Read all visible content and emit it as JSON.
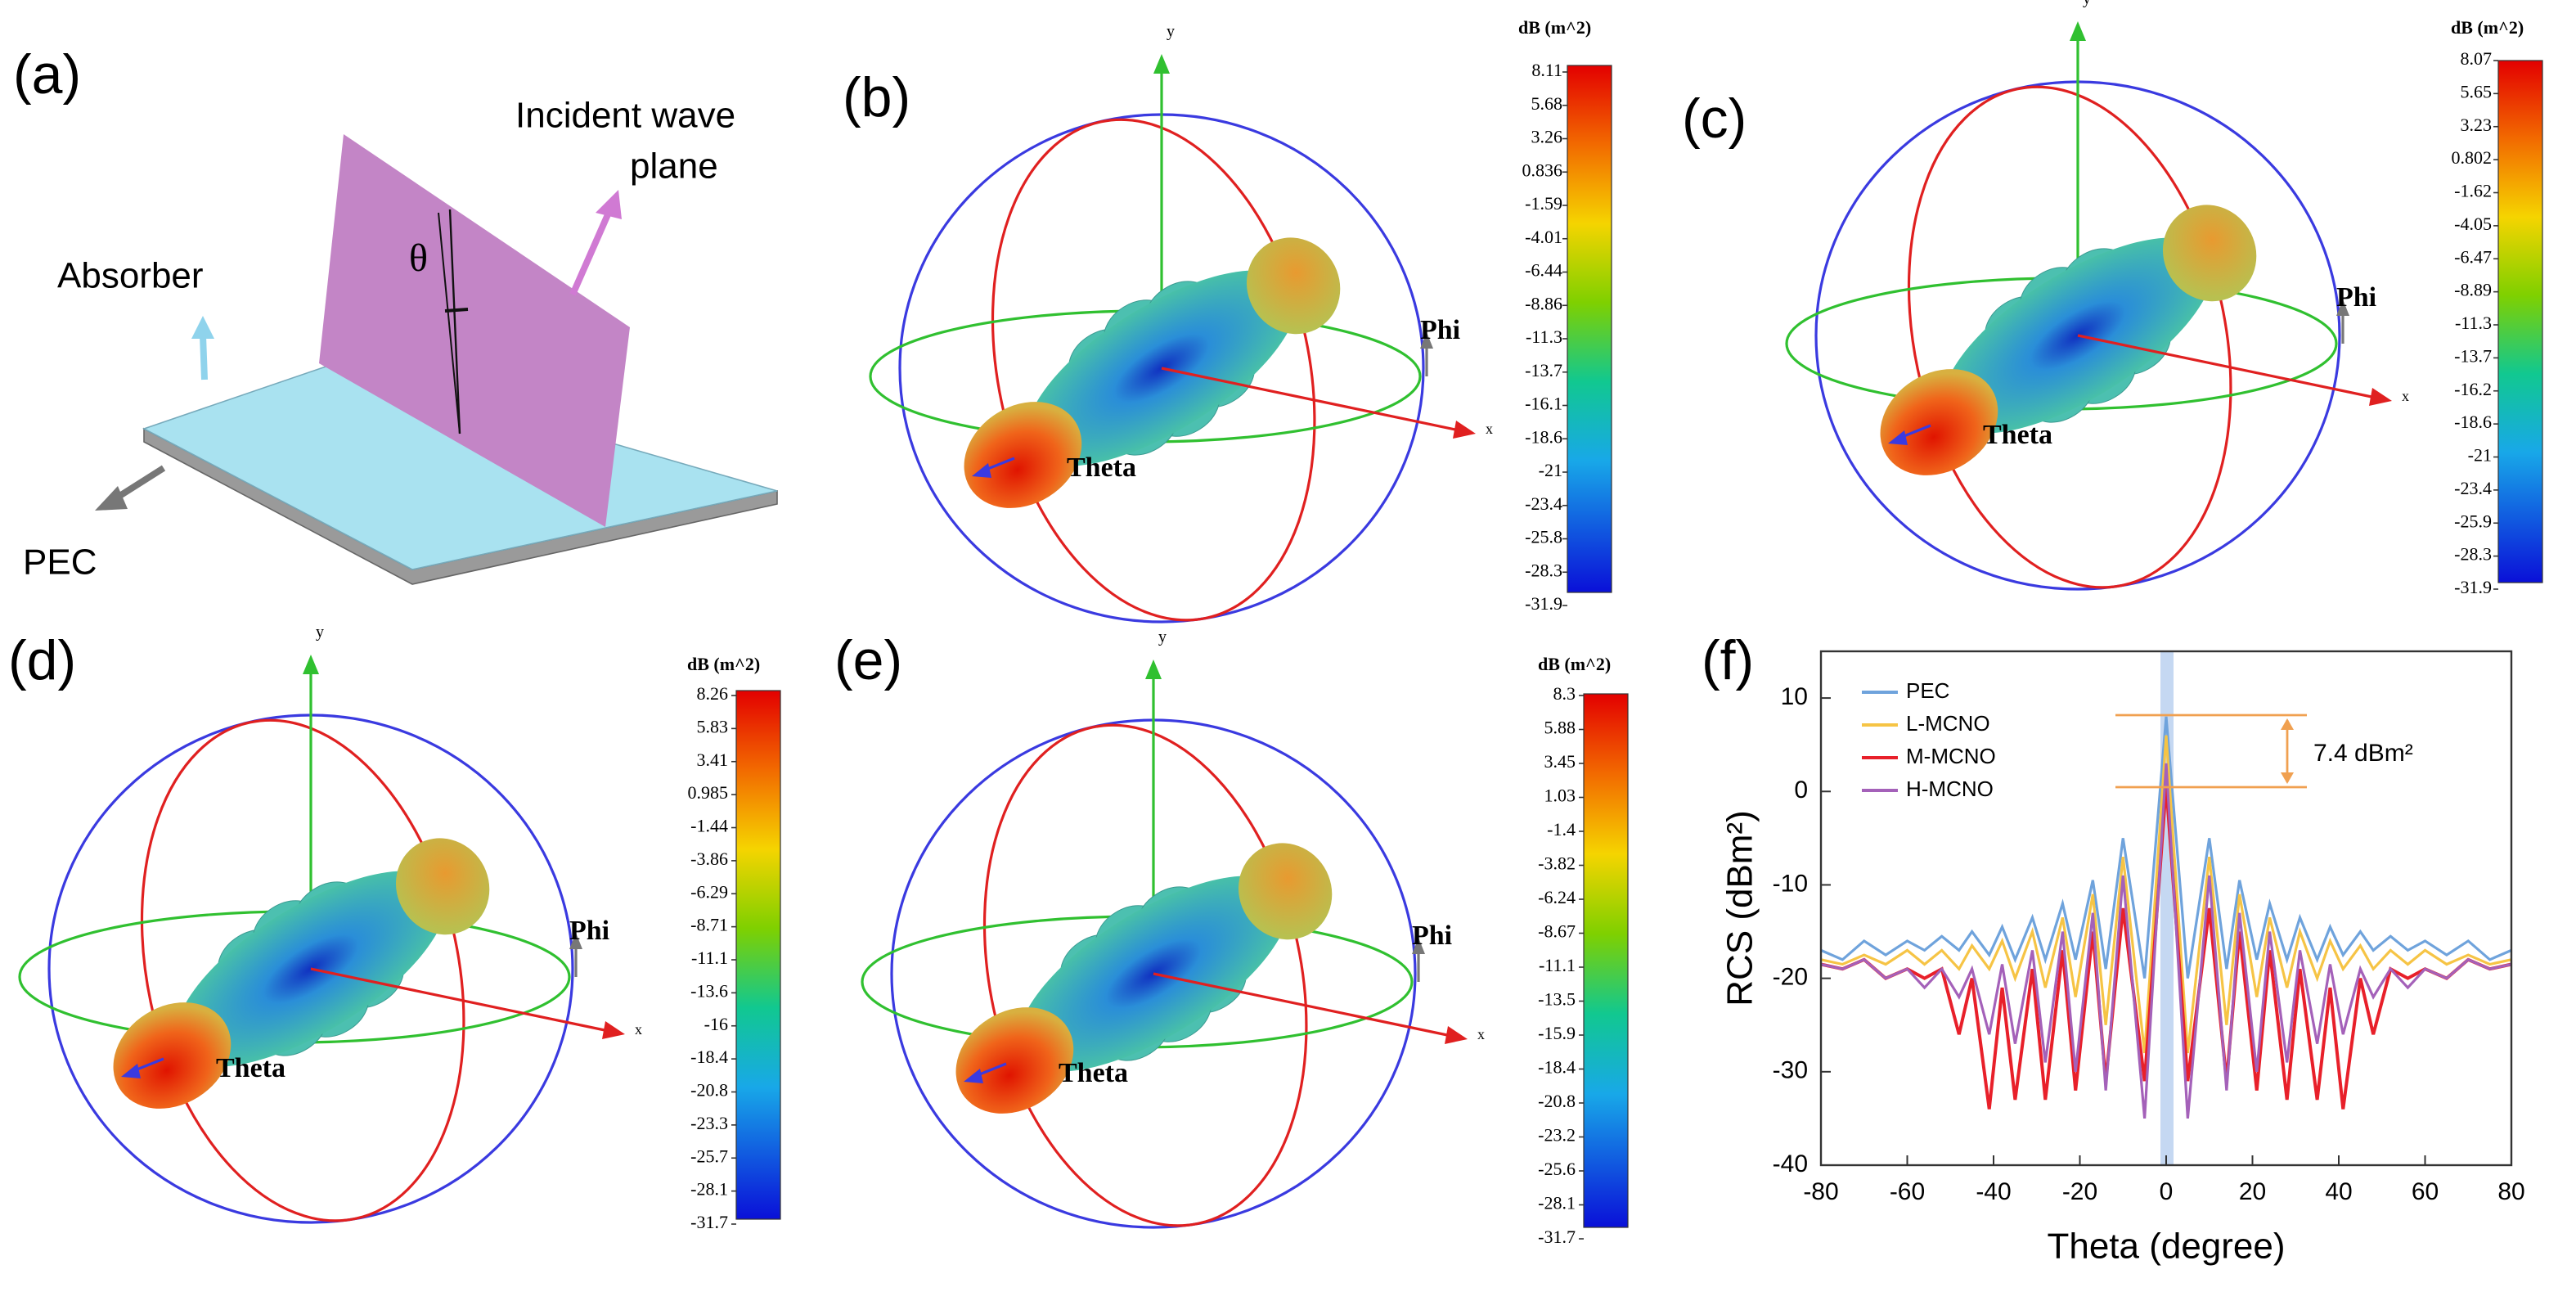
{
  "panels": {
    "a": {
      "label": "(a)",
      "incident": [
        "Incident wave",
        "plane"
      ],
      "absorber": "Absorber",
      "pec": "PEC",
      "theta": "θ"
    },
    "b": {
      "label": "(b)",
      "axis_y": "y",
      "axis_x": "x",
      "phi": "Phi",
      "theta": "Theta",
      "colorbar": {
        "title": "dB (m^2)",
        "ticks": [
          8.11,
          5.68,
          3.26,
          0.836,
          -1.59,
          -4.01,
          -6.44,
          -8.86,
          -11.3,
          -13.7,
          -16.1,
          -18.6,
          -21,
          -23.4,
          -25.8,
          -28.3,
          -31.9
        ]
      }
    },
    "c": {
      "label": "(c)",
      "axis_y": "y",
      "axis_x": "x",
      "phi": "Phi",
      "theta": "Theta",
      "colorbar": {
        "title": "dB (m^2)",
        "ticks": [
          8.07,
          5.65,
          3.23,
          0.802,
          -1.62,
          -4.05,
          -6.47,
          -8.89,
          -11.3,
          -13.7,
          -16.2,
          -18.6,
          -21,
          -23.4,
          -25.9,
          -28.3,
          -31.9
        ]
      }
    },
    "d": {
      "label": "(d)",
      "axis_y": "y",
      "axis_x": "x",
      "phi": "Phi",
      "theta": "Theta",
      "colorbar": {
        "title": "dB (m^2)",
        "ticks": [
          8.26,
          5.83,
          3.41,
          0.985,
          -1.44,
          -3.86,
          -6.29,
          -8.71,
          -11.1,
          -13.6,
          -16,
          -18.4,
          -20.8,
          -23.3,
          -25.7,
          -28.1,
          -31.7
        ]
      }
    },
    "e": {
      "label": "(e)",
      "axis_y": "y",
      "axis_x": "x",
      "phi": "Phi",
      "theta": "Theta",
      "colorbar": {
        "title": "dB (m^2)",
        "ticks": [
          8.3,
          5.88,
          3.45,
          1.03,
          -1.4,
          -3.82,
          -6.24,
          -8.67,
          -11.1,
          -13.5,
          -15.9,
          -18.4,
          -20.8,
          -23.2,
          -25.6,
          -28.1,
          -31.7
        ]
      }
    },
    "f": {
      "label": "(f)"
    }
  },
  "chart_data": {
    "type": "line",
    "x_label": "Theta (degree)",
    "y_label": "RCS (dBm²)",
    "annotation": "7.4 dBm²",
    "x": [
      -80,
      -75,
      -70,
      -65,
      -60,
      -56,
      -52,
      -48,
      -45,
      -41,
      -38,
      -35,
      -31,
      -28,
      -24,
      -21,
      -17,
      -14,
      -10,
      -5,
      0,
      5,
      10,
      14,
      17,
      21,
      24,
      28,
      31,
      35,
      38,
      41,
      45,
      48,
      52,
      56,
      60,
      65,
      70,
      75,
      80
    ],
    "series": [
      {
        "name": "PEC",
        "color": "#6fa3dc",
        "values": [
          -17,
          -18,
          -16,
          -17.5,
          -16,
          -17,
          -15.5,
          -17,
          -15,
          -17.5,
          -14.5,
          -18,
          -13.5,
          -18,
          -12,
          -18,
          -9.5,
          -19,
          -5,
          -20,
          8,
          -20,
          -5,
          -19,
          -9.5,
          -18,
          -12,
          -18,
          -13.5,
          -18,
          -14.5,
          -17.5,
          -15,
          -17,
          -15.5,
          -17,
          -16,
          -17.5,
          -16,
          -18,
          -17
        ]
      },
      {
        "name": "L-MCNO",
        "color": "#f6c445",
        "values": [
          -18,
          -18.5,
          -17.5,
          -18.5,
          -17,
          -18.5,
          -17,
          -19,
          -16.5,
          -19,
          -16,
          -20,
          -15,
          -21,
          -13.5,
          -22,
          -11,
          -25,
          -7,
          -28,
          6,
          -28,
          -7,
          -25,
          -11,
          -22,
          -13.5,
          -21,
          -15,
          -20,
          -16,
          -19,
          -16.5,
          -19,
          -17,
          -18.5,
          -17,
          -18.5,
          -17.5,
          -18.5,
          -18
        ]
      },
      {
        "name": "M-MCNO",
        "color": "#e8202a",
        "values": [
          -18.5,
          -19,
          -18,
          -20,
          -19,
          -20,
          -19,
          -26,
          -20,
          -34,
          -21,
          -33,
          -19,
          -33,
          -17,
          -32,
          -15,
          -31,
          -12.5,
          -31,
          0.7,
          -31,
          -12.5,
          -31,
          -15,
          -32,
          -17,
          -33,
          -19,
          -33,
          -21,
          -34,
          -20,
          -26,
          -19,
          -20,
          -19,
          -20,
          -18,
          -19,
          -18.5
        ]
      },
      {
        "name": "H-MCNO",
        "color": "#a461b9",
        "values": [
          -18.5,
          -19,
          -18,
          -20,
          -19,
          -21,
          -19,
          -22,
          -19,
          -26,
          -18.5,
          -27,
          -17,
          -29,
          -15,
          -30,
          -13,
          -32,
          -9,
          -35,
          3,
          -35,
          -9,
          -32,
          -13,
          -30,
          -15,
          -29,
          -17,
          -27,
          -18.5,
          -26,
          -19,
          -22,
          -19,
          -21,
          -19,
          -20,
          -18,
          -19,
          -18.5
        ]
      }
    ],
    "xlim": [
      -80,
      80
    ],
    "xticks": [
      -80,
      -60,
      -40,
      -20,
      0,
      20,
      40,
      60,
      80
    ],
    "ylim": [
      -40,
      15
    ],
    "yticks": [
      -40,
      -30,
      -20,
      -10,
      0,
      10
    ],
    "legend": "upper left"
  }
}
